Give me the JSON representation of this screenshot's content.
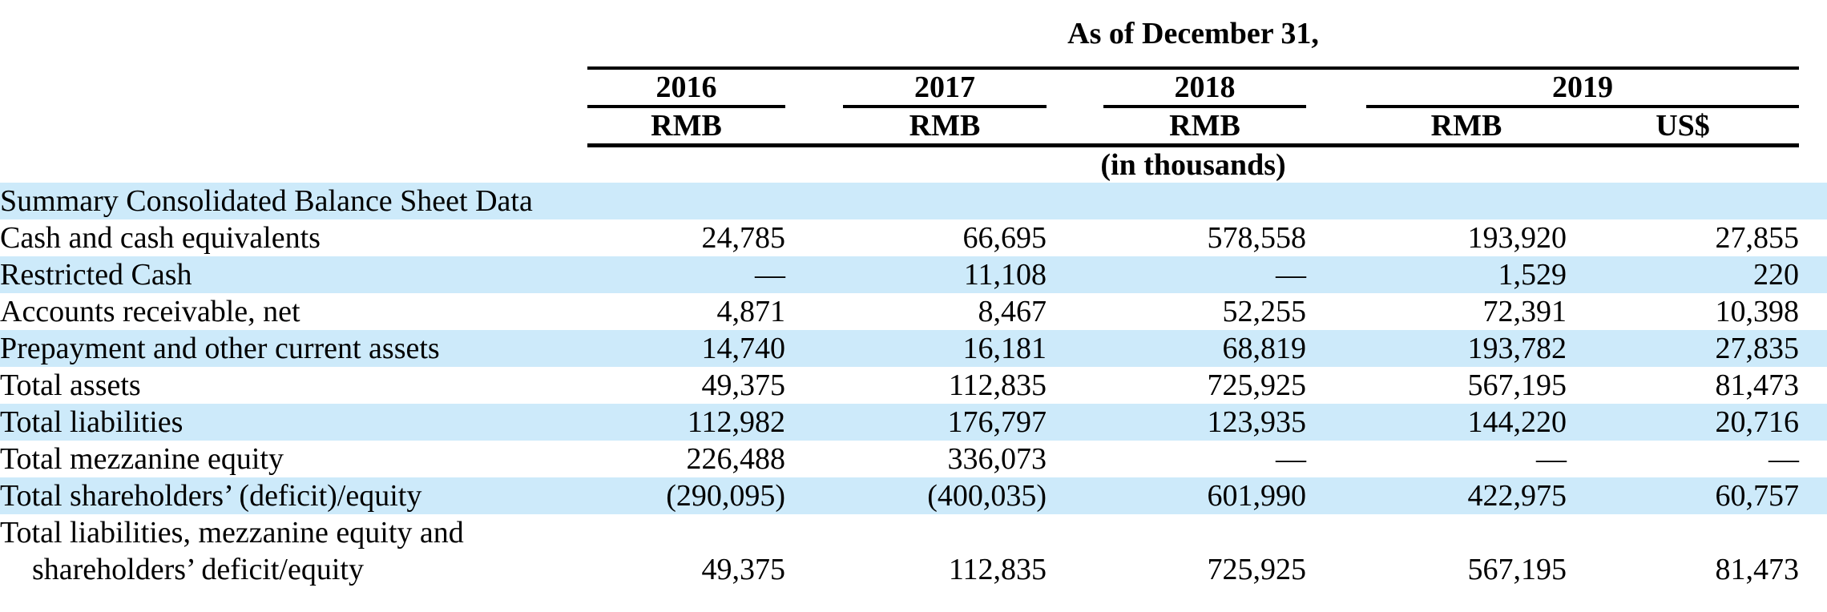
{
  "table": {
    "stripe_color": "#cdeafa",
    "rule_color": "#000000",
    "header": {
      "date_line": "As of December 31,",
      "years": {
        "y2016": "2016",
        "y2017": "2017",
        "y2018": "2018",
        "y2019": "2019"
      },
      "units": {
        "u2016": "RMB",
        "u2017": "RMB",
        "u2018": "RMB",
        "u2019rmb": "RMB",
        "u2019usd": "US$"
      },
      "scale_note": "(in thousands)"
    },
    "section_title": "Summary Consolidated Balance Sheet Data",
    "rows": [
      {
        "label": "Cash and cash equivalents",
        "values": [
          "24,785",
          "66,695",
          "578,558",
          "193,920",
          "27,855"
        ]
      },
      {
        "label": "Restricted Cash",
        "values": [
          "—",
          "11,108",
          "—",
          "1,529",
          "220"
        ]
      },
      {
        "label": "Accounts receivable, net",
        "values": [
          "4,871",
          "8,467",
          "52,255",
          "72,391",
          "10,398"
        ]
      },
      {
        "label": "Prepayment and other current assets",
        "values": [
          "14,740",
          "16,181",
          "68,819",
          "193,782",
          "27,835"
        ]
      },
      {
        "label": "Total assets",
        "values": [
          "49,375",
          "112,835",
          "725,925",
          "567,195",
          "81,473"
        ]
      },
      {
        "label": "Total liabilities",
        "values": [
          "112,982",
          "176,797",
          "123,935",
          "144,220",
          "20,716"
        ]
      },
      {
        "label": "Total mezzanine equity",
        "values": [
          "226,488",
          "336,073",
          "—",
          "—",
          "—"
        ]
      },
      {
        "label": "Total shareholders’ (deficit)/equity",
        "values": [
          "(290,095)",
          "(400,035)",
          "601,990",
          "422,975",
          "60,757"
        ]
      },
      {
        "label_line1": "Total liabilities, mezzanine equity and",
        "label_line2": "shareholders’ deficit/equity",
        "values": [
          "49,375",
          "112,835",
          "725,925",
          "567,195",
          "81,473"
        ]
      }
    ]
  }
}
